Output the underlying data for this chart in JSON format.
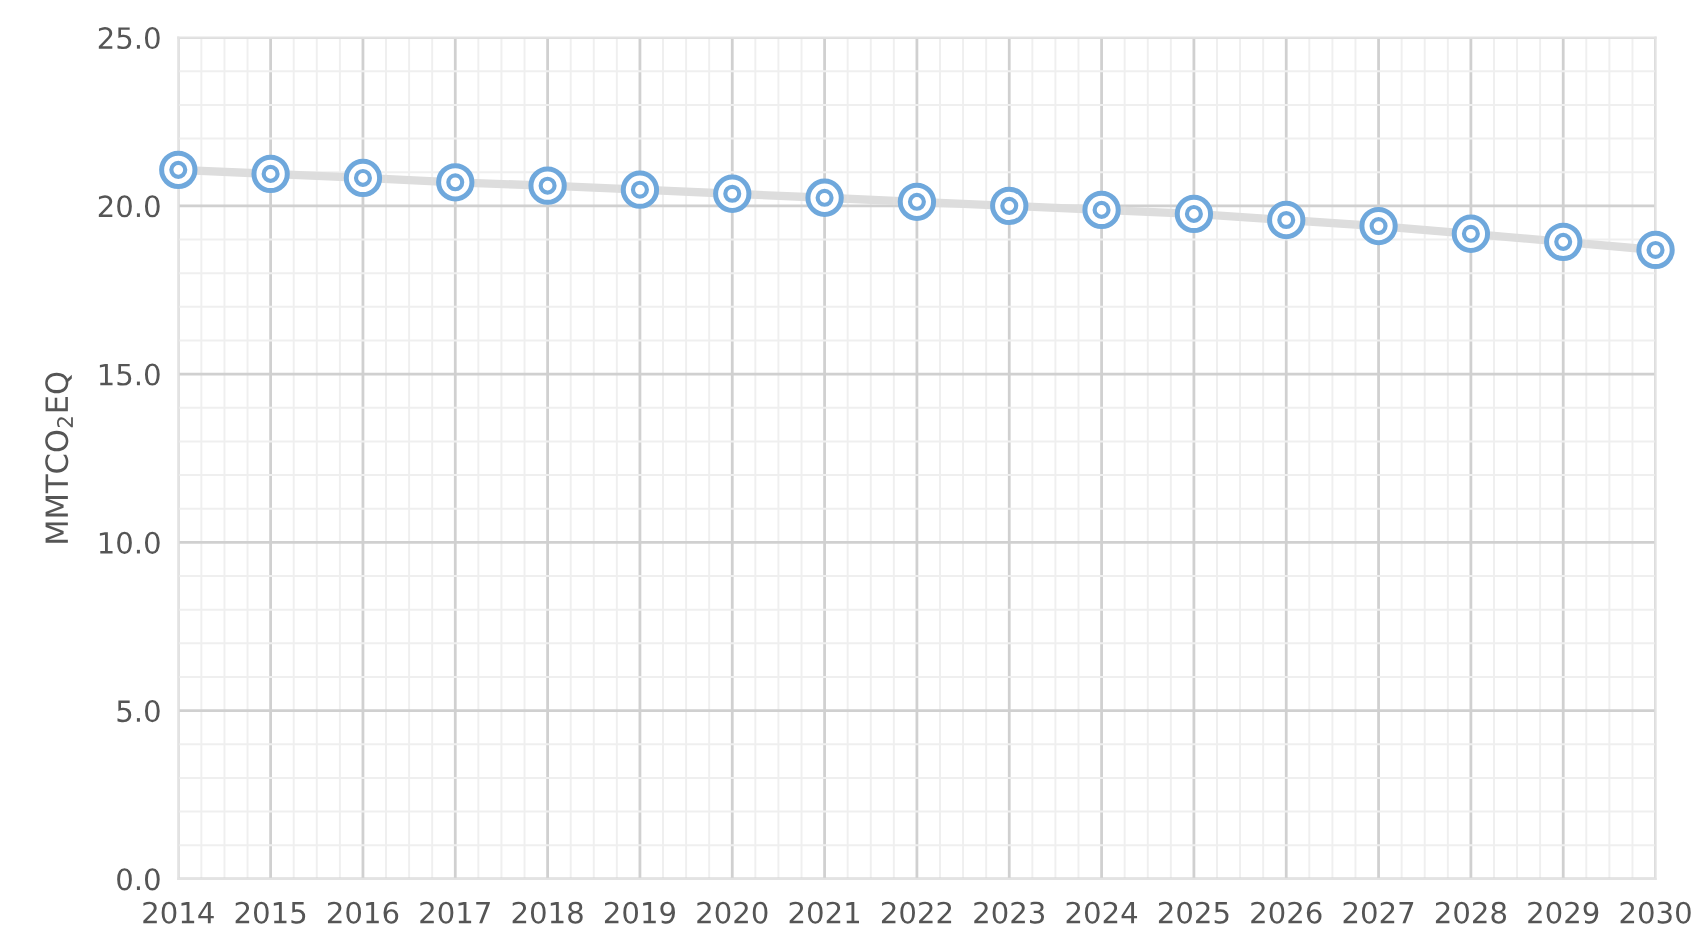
{
  "chart_data": {
    "type": "line",
    "ylabel": "MMTCO$_{2}$EQ",
    "x": [
      2014,
      2015,
      2016,
      2017,
      2018,
      2019,
      2020,
      2021,
      2022,
      2023,
      2024,
      2025,
      2026,
      2027,
      2028,
      2029,
      2030
    ],
    "series": [
      {
        "color": "#6fa8dc",
        "values": [
          21.07,
          20.95,
          20.83,
          20.7,
          20.6,
          20.48,
          20.36,
          20.24,
          20.12,
          20.0,
          19.88,
          19.76,
          19.58,
          19.4,
          19.17,
          18.93,
          18.69
        ]
      }
    ],
    "xlim": [
      2014,
      2030
    ],
    "xticks": [
      2014,
      2015,
      2016,
      2017,
      2018,
      2019,
      2020,
      2021,
      2022,
      2023,
      2024,
      2025,
      2026,
      2027,
      2028,
      2029,
      2030
    ],
    "ylim": [
      0,
      25
    ],
    "yticks": [
      {
        "value": 0,
        "label": "0.0"
      },
      {
        "value": 5,
        "label": "5.0"
      },
      {
        "value": 10,
        "label": "10.0"
      },
      {
        "value": 15,
        "label": "15.0"
      },
      {
        "value": 20,
        "label": "20.0"
      },
      {
        "value": 25,
        "label": "25.0"
      }
    ],
    "grid": true,
    "marker": "circle",
    "line_style": "solid",
    "legend": false
  }
}
